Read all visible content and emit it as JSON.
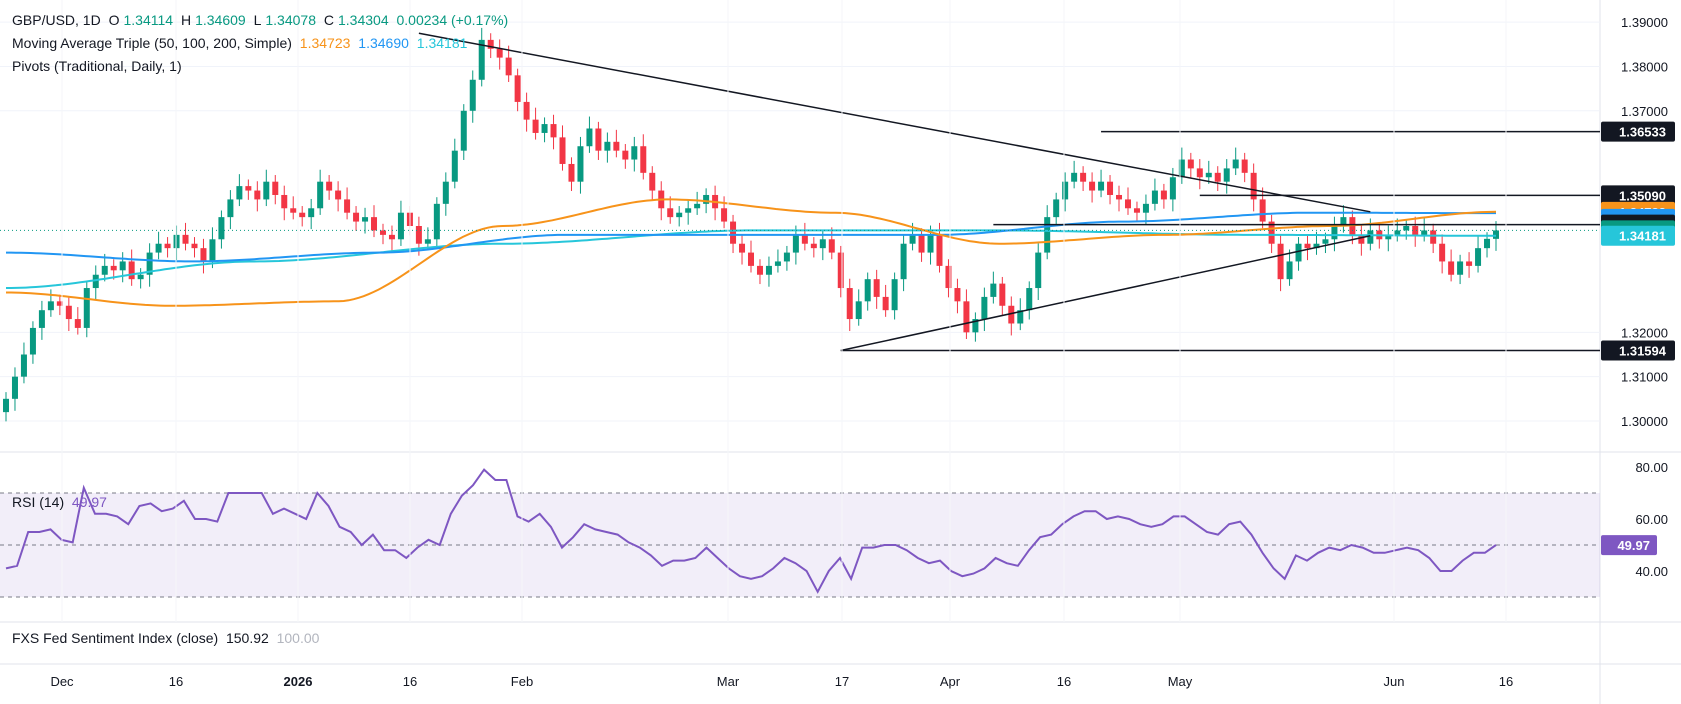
{
  "legend": {
    "symbol": "GBP/USD, 1D",
    "open_label": "O",
    "open": "1.34114",
    "high_label": "H",
    "high": "1.34609",
    "low_label": "L",
    "low": "1.34078",
    "close_label": "C",
    "close": "1.34304",
    "change": "0.00234 (+0.17%)",
    "ma_title": "Moving Average Triple (50, 100, 200, Simple)",
    "ma50": "1.34723",
    "ma100": "1.34690",
    "ma200": "1.34181",
    "pivots_title": "Pivots (Traditional, Daily, 1)",
    "rsi_title": "RSI (14)",
    "rsi_value": "49.97",
    "fxs_title": "FXS Fed Sentiment Index (close)",
    "fxs_value1": "150.92",
    "fxs_value2": "100.00"
  },
  "colors": {
    "up": "#089981",
    "down": "#f23645",
    "ma50": "#f7931a",
    "ma100": "#2196f3",
    "ma200": "#26c6da",
    "rsi": "#7e57c2",
    "trend": "#131722"
  },
  "chart_data": [
    {
      "type": "candlestick",
      "title": "GBP/USD, 1D",
      "ylim": [
        1.293,
        1.395
      ],
      "y_ticks": [
        "1.39000",
        "1.38000",
        "1.37000",
        "1.32000",
        "1.31000",
        "1.30000"
      ],
      "x_ticks": [
        "Dec",
        "16",
        "2026",
        "16",
        "Feb",
        "Mar",
        "17",
        "Apr",
        "16",
        "May",
        "Jun",
        "16"
      ],
      "price_labels": [
        {
          "value": "1.36533",
          "y": 1.3653,
          "style": "dark"
        },
        {
          "value": "1.35090",
          "y": 1.3509,
          "style": "dark"
        },
        {
          "value": "1.34723",
          "y": 1.3472,
          "style": "orange"
        },
        {
          "value": "1.34690",
          "y": 1.3456,
          "style": "blue"
        },
        {
          "value": "1.34479",
          "y": 1.3443,
          "style": "dark"
        },
        {
          "value": "1.34304",
          "y": 1.343,
          "style": "teal"
        },
        {
          "value": "1.34181",
          "y": 1.3418,
          "style": "cyan"
        },
        {
          "value": "1.31594",
          "y": 1.3159,
          "style": "dark"
        }
      ],
      "candles_close": [
        1.305,
        1.31,
        1.315,
        1.321,
        1.325,
        1.327,
        1.326,
        1.323,
        1.321,
        1.33,
        1.333,
        1.335,
        1.334,
        1.336,
        1.332,
        1.333,
        1.338,
        1.34,
        1.339,
        1.342,
        1.34,
        1.339,
        1.336,
        1.341,
        1.346,
        1.35,
        1.353,
        1.352,
        1.35,
        1.354,
        1.351,
        1.348,
        1.347,
        1.346,
        1.348,
        1.354,
        1.352,
        1.35,
        1.347,
        1.345,
        1.346,
        1.343,
        1.342,
        1.341,
        1.347,
        1.344,
        1.34,
        1.341,
        1.349,
        1.354,
        1.361,
        1.37,
        1.377,
        1.386,
        1.384,
        1.382,
        1.378,
        1.372,
        1.368,
        1.365,
        1.367,
        1.364,
        1.358,
        1.354,
        1.362,
        1.366,
        1.361,
        1.363,
        1.361,
        1.359,
        1.362,
        1.356,
        1.352,
        1.348,
        1.346,
        1.347,
        1.348,
        1.349,
        1.351,
        1.348,
        1.345,
        1.34,
        1.338,
        1.335,
        1.333,
        1.335,
        1.336,
        1.338,
        1.342,
        1.34,
        1.339,
        1.341,
        1.338,
        1.33,
        1.323,
        1.327,
        1.332,
        1.328,
        1.325,
        1.332,
        1.34,
        1.342,
        1.338,
        1.342,
        1.335,
        1.33,
        1.327,
        1.32,
        1.323,
        1.328,
        1.331,
        1.326,
        1.322,
        1.325,
        1.33,
        1.338,
        1.346,
        1.35,
        1.354,
        1.356,
        1.354,
        1.352,
        1.354,
        1.351,
        1.35,
        1.348,
        1.347,
        1.349,
        1.352,
        1.35,
        1.355,
        1.359,
        1.357,
        1.355,
        1.356,
        1.354,
        1.357,
        1.359,
        1.356,
        1.35,
        1.345,
        1.34,
        1.332,
        1.336,
        1.34,
        1.339,
        1.34,
        1.341,
        1.344,
        1.346,
        1.342,
        1.34,
        1.343,
        1.341,
        1.342,
        1.343,
        1.344,
        1.342,
        1.343,
        1.34,
        1.336,
        1.333,
        1.336,
        1.335,
        1.339,
        1.3411,
        1.343
      ],
      "ma50_anchor": [
        1.329,
        1.326,
        1.327,
        1.344,
        1.35,
        1.347,
        1.34,
        1.342,
        1.344,
        1.3472
      ],
      "ma100_anchor": [
        1.338,
        1.336,
        1.338,
        1.342,
        1.342,
        1.342,
        1.345,
        1.347,
        1.3469
      ],
      "ma200_anchor": [
        1.33,
        1.336,
        1.34,
        1.343,
        1.343,
        1.342,
        1.3418
      ]
    },
    {
      "type": "line",
      "title": "RSI (14)",
      "ylim": [
        25,
        85
      ],
      "y_ticks": [
        "80.00",
        "60.00",
        "40.00"
      ],
      "bands": [
        70,
        50,
        30
      ],
      "current_label": "49.97",
      "values": [
        41,
        42,
        55,
        55,
        56,
        52,
        51,
        72,
        62,
        62,
        61,
        58,
        65,
        66,
        63,
        64,
        67,
        60,
        60,
        59,
        70,
        70,
        70,
        70,
        62,
        64,
        62,
        60,
        70,
        65,
        57,
        55,
        50,
        54,
        48,
        48,
        45,
        49,
        52,
        50,
        62,
        69,
        73,
        79,
        75,
        75,
        61,
        59,
        62,
        57,
        49,
        53,
        58,
        56,
        55,
        54,
        51,
        49,
        46,
        42,
        44,
        44,
        45,
        49,
        45,
        41,
        38,
        37,
        38,
        41,
        45,
        43,
        40,
        32,
        40,
        45,
        37,
        49,
        49,
        50,
        50,
        48,
        45,
        43,
        44,
        40,
        38,
        39,
        41,
        45,
        43,
        42,
        48,
        53,
        54,
        58,
        61,
        63,
        63,
        60,
        61,
        60,
        58,
        57,
        58,
        61,
        61,
        58,
        55,
        54,
        58,
        59,
        54,
        47,
        41,
        37,
        46,
        44,
        47,
        49,
        48,
        50,
        49,
        47,
        47,
        48,
        49,
        48,
        45,
        40,
        40,
        44,
        47,
        47,
        50
      ]
    },
    {
      "type": "line",
      "title": "FXS Fed Sentiment Index (close)",
      "values_shown": [
        "150.92",
        "100.00"
      ]
    }
  ]
}
